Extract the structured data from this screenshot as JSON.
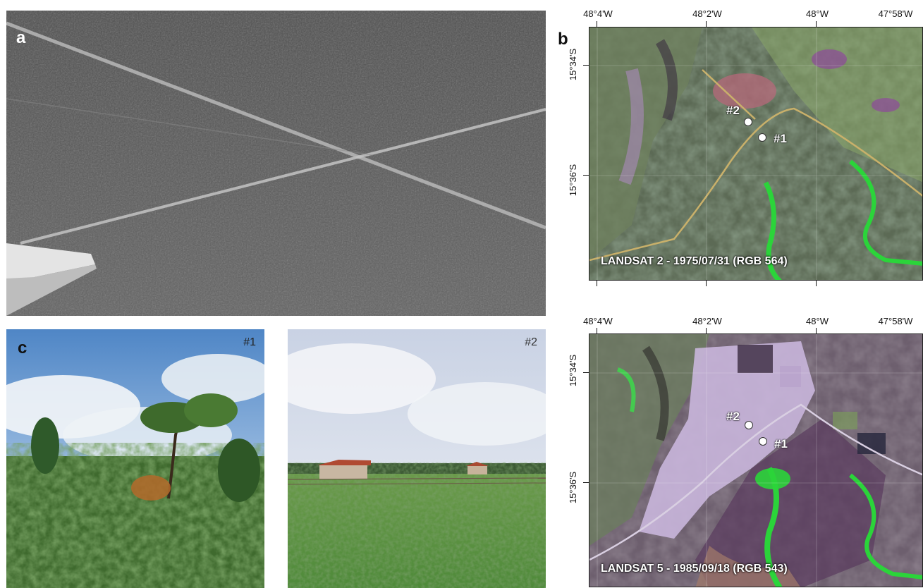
{
  "panels": {
    "a": {
      "letter": "a"
    },
    "b": {
      "letter": "b"
    },
    "c": {
      "letter": "c",
      "photo1_tag": "#1",
      "photo2_tag": "#2"
    }
  },
  "maps": {
    "top": {
      "lon_labels": [
        "48°4'W",
        "48°2'W",
        "48°W",
        "47°58'W"
      ],
      "lat_labels": [
        "15°34'S",
        "15°36'S"
      ],
      "site1": "#1",
      "site2": "#2",
      "caption": "LANDSAT 2 - 1975/07/31 (RGB 564)"
    },
    "bottom": {
      "lon_labels": [
        "48°4'W",
        "48°2'W",
        "48°W",
        "47°58'W"
      ],
      "lat_labels": [
        "15°34'S",
        "15°36'S"
      ],
      "site1": "#1",
      "site2": "#2",
      "caption": "LANDSAT 5 - 1985/09/18 (RGB 543)"
    }
  },
  "colors": {
    "vegetation_green": "#2bd43a",
    "soil_purple": "#8a4f8f",
    "pasture_pink": "#c9b6dc",
    "road_tan": "#c9b06a"
  }
}
